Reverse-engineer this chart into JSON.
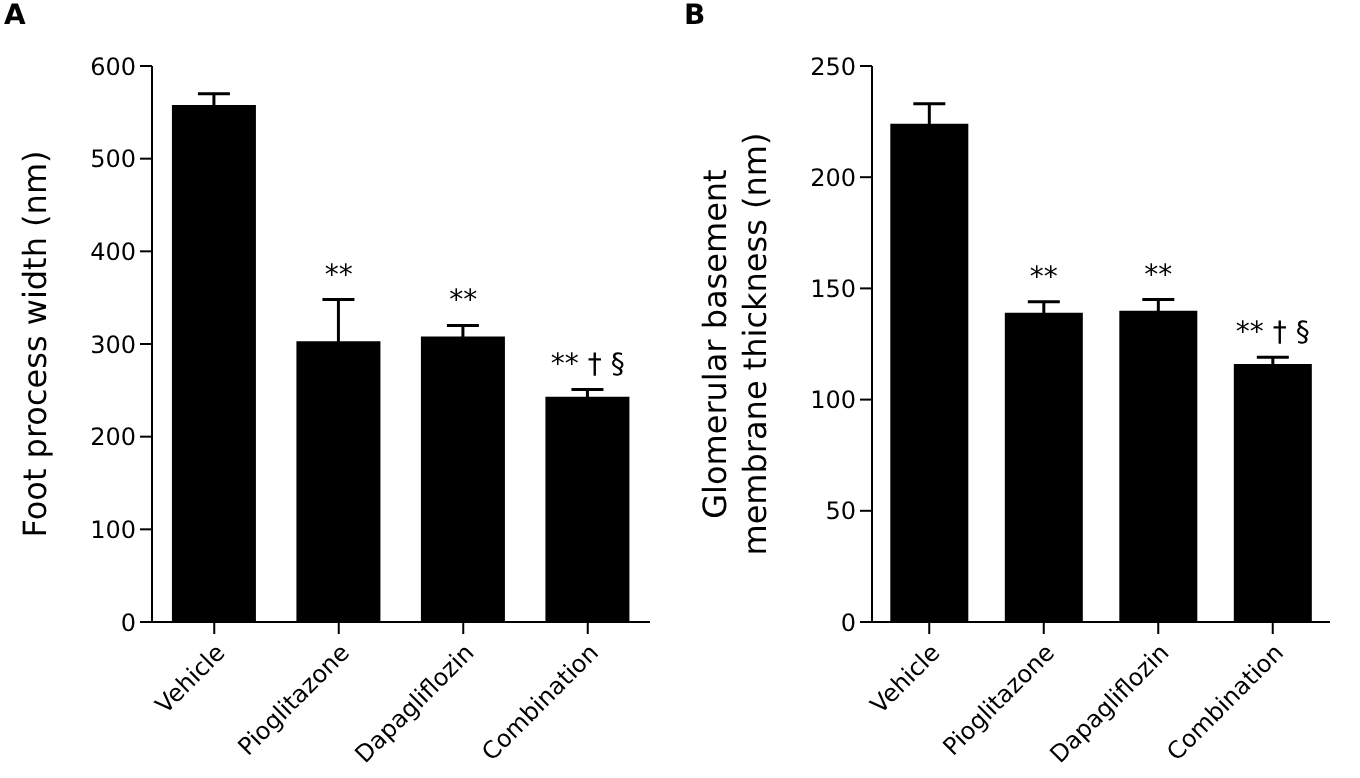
{
  "chart_data": [
    {
      "type": "bar",
      "title": "A",
      "ylabel": "Foot process width (nm)",
      "categories": [
        "Vehicle",
        "Pioglitazone",
        "Dapagliflozin",
        "Combination"
      ],
      "values": [
        558,
        303,
        308,
        243
      ],
      "errors": [
        12,
        45,
        12,
        8
      ],
      "color": "#000000",
      "ylim": [
        0,
        600
      ],
      "yticks": [
        0,
        100,
        200,
        300,
        400,
        500,
        600
      ],
      "annotations": [
        {
          "text": "**",
          "x": "Pioglitazone",
          "y": 348
        },
        {
          "text": "**",
          "x": "Dapagliflozin",
          "y": 320
        },
        {
          "text": "** † §",
          "x": "Combination",
          "y": 251
        }
      ]
    },
    {
      "type": "bar",
      "title": "B",
      "ylabel": "Glomerular basement membrane thickness (nm)",
      "categories": [
        "Vehicle",
        "Pioglitazone",
        "Dapagliflozin",
        "Combination"
      ],
      "values": [
        224,
        139,
        140,
        116
      ],
      "errors": [
        9,
        5,
        5,
        3
      ],
      "color": "#000000",
      "ylim": [
        0,
        250
      ],
      "yticks": [
        0,
        50,
        100,
        150,
        200,
        250
      ],
      "annotations": [
        {
          "text": "**",
          "x": "Pioglitazone",
          "y": 144
        },
        {
          "text": "**",
          "x": "Dapagliflozin",
          "y": 145
        },
        {
          "text": "** † §",
          "x": "Combination",
          "y": 119
        }
      ]
    }
  ]
}
